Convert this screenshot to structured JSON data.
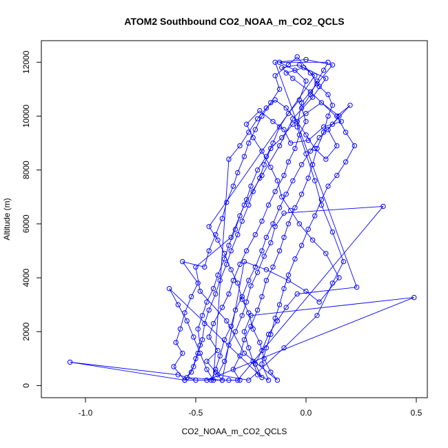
{
  "chart_data": {
    "type": "scatter",
    "title": "ATOM2 Southbound CO2_NOAA_m_CO2_QCLS",
    "xlabel": "CO2_NOAA_m_CO2_QCLS",
    "ylabel": "Altitude (m)",
    "xlim": [
      -1.2,
      0.55
    ],
    "ylim": [
      -450,
      12800
    ],
    "x_ticks": [
      -1.0,
      -0.5,
      0.0,
      0.5
    ],
    "x_tick_labels": [
      "-1.0",
      "-0.5",
      "0.0",
      "0.5"
    ],
    "y_ticks": [
      0,
      2000,
      4000,
      6000,
      8000,
      10000,
      12000
    ],
    "y_tick_labels": [
      "0",
      "2000",
      "4000",
      "6000",
      "8000",
      "10000",
      "12000"
    ],
    "grid": false,
    "legend": "none",
    "series": [
      {
        "color": "#0000ff",
        "marker": "open-circle",
        "connected": true,
        "points": [
          [
            -0.38,
            200
          ],
          [
            -0.41,
            500
          ],
          [
            -0.45,
            900
          ],
          [
            -0.4,
            1300
          ],
          [
            -0.44,
            1800
          ],
          [
            -0.42,
            2300
          ],
          [
            -0.38,
            2900
          ],
          [
            -0.35,
            3400
          ],
          [
            -0.33,
            3900
          ],
          [
            -0.3,
            4500
          ],
          [
            -0.27,
            5000
          ],
          [
            -0.23,
            5600
          ],
          [
            -0.2,
            6100
          ],
          [
            -0.17,
            6700
          ],
          [
            -0.14,
            7200
          ],
          [
            -0.1,
            7800
          ],
          [
            -0.08,
            8300
          ],
          [
            -0.05,
            8800
          ],
          [
            -0.03,
            9300
          ],
          [
            0.0,
            9800
          ],
          [
            -0.02,
            10300
          ],
          [
            0.02,
            10800
          ],
          [
            0.05,
            11300
          ],
          [
            0.08,
            11700
          ],
          [
            0.1,
            12000
          ],
          [
            -0.12,
            12000
          ],
          [
            -0.05,
            11700
          ],
          [
            0.0,
            11300
          ],
          [
            -0.03,
            10600
          ],
          [
            -0.08,
            10100
          ],
          [
            -0.12,
            9600
          ],
          [
            -0.15,
            9000
          ],
          [
            -0.18,
            8500
          ],
          [
            -0.22,
            8000
          ],
          [
            -0.25,
            7400
          ],
          [
            -0.27,
            6900
          ],
          [
            -0.3,
            6300
          ],
          [
            -0.32,
            5800
          ],
          [
            -0.35,
            5200
          ],
          [
            -0.37,
            4700
          ],
          [
            -0.4,
            4100
          ],
          [
            -0.42,
            3600
          ],
          [
            -0.45,
            3100
          ],
          [
            -0.47,
            2600
          ],
          [
            -0.49,
            2100
          ],
          [
            -0.48,
            1500
          ],
          [
            -0.5,
            1000
          ],
          [
            -0.52,
            500
          ],
          [
            -0.55,
            200
          ],
          [
            -1.07,
            870
          ],
          [
            -0.58,
            400
          ],
          [
            -0.5,
            200
          ],
          [
            -0.35,
            200
          ],
          [
            -0.3,
            200
          ],
          [
            -0.33,
            600
          ],
          [
            -0.3,
            1100
          ],
          [
            -0.28,
            1700
          ],
          [
            -0.25,
            2200
          ],
          [
            -0.22,
            2800
          ],
          [
            -0.2,
            3300
          ],
          [
            -0.18,
            3900
          ],
          [
            -0.15,
            4400
          ],
          [
            -0.12,
            5000
          ],
          [
            -0.1,
            5500
          ],
          [
            -0.08,
            6000
          ],
          [
            -0.05,
            6600
          ],
          [
            -0.02,
            7100
          ],
          [
            0.01,
            7700
          ],
          [
            0.03,
            8200
          ],
          [
            0.05,
            8800
          ],
          [
            0.08,
            9400
          ],
          [
            0.1,
            10000
          ],
          [
            0.12,
            10400
          ],
          [
            0.1,
            10800
          ],
          [
            0.06,
            11100
          ],
          [
            0.02,
            11600
          ],
          [
            -0.04,
            12200
          ],
          [
            -0.08,
            11900
          ],
          [
            -0.14,
            11500
          ],
          [
            -0.12,
            11000
          ],
          [
            -0.16,
            10500
          ],
          [
            -0.2,
            10000
          ],
          [
            -0.23,
            9500
          ],
          [
            -0.26,
            9000
          ],
          [
            -0.28,
            8500
          ],
          [
            -0.31,
            7900
          ],
          [
            -0.33,
            7400
          ],
          [
            -0.36,
            6800
          ],
          [
            -0.38,
            6200
          ],
          [
            -0.41,
            5600
          ],
          [
            -0.44,
            5000
          ],
          [
            -0.46,
            4400
          ],
          [
            -0.56,
            4600
          ],
          [
            -0.49,
            3800
          ],
          [
            -0.52,
            3300
          ],
          [
            -0.55,
            2700
          ],
          [
            -0.57,
            2100
          ],
          [
            -0.59,
            1600
          ],
          [
            -0.56,
            1200
          ],
          [
            -0.6,
            700
          ],
          [
            -0.55,
            200
          ],
          [
            -0.45,
            200
          ],
          [
            0.49,
            3270
          ],
          [
            -0.25,
            2600
          ],
          [
            -0.28,
            2000
          ],
          [
            -0.26,
            1400
          ],
          [
            -0.24,
            900
          ],
          [
            -0.22,
            400
          ],
          [
            -0.17,
            200
          ],
          [
            -0.2,
            800
          ],
          [
            -0.18,
            1400
          ],
          [
            -0.16,
            1900
          ],
          [
            -0.14,
            2500
          ],
          [
            -0.12,
            3000
          ],
          [
            -0.1,
            3600
          ],
          [
            -0.08,
            4100
          ],
          [
            -0.05,
            4700
          ],
          [
            -0.02,
            5200
          ],
          [
            0.01,
            5800
          ],
          [
            0.04,
            6300
          ],
          [
            0.07,
            6900
          ],
          [
            0.1,
            7400
          ],
          [
            0.14,
            7800
          ],
          [
            0.18,
            8300
          ],
          [
            0.22,
            8900
          ],
          [
            0.18,
            9400
          ],
          [
            0.14,
            10000
          ],
          [
            0.2,
            10400
          ],
          [
            0.12,
            9700
          ],
          [
            0.06,
            9200
          ],
          [
            0.02,
            8700
          ],
          [
            -0.02,
            8200
          ],
          [
            -0.06,
            7600
          ],
          [
            -0.09,
            7100
          ],
          [
            -0.12,
            6600
          ],
          [
            -0.15,
            6000
          ],
          [
            -0.18,
            5500
          ],
          [
            -0.2,
            5000
          ],
          [
            -0.23,
            4400
          ],
          [
            -0.26,
            3900
          ],
          [
            -0.29,
            3300
          ],
          [
            -0.32,
            2800
          ],
          [
            -0.34,
            2200
          ],
          [
            -0.37,
            1700
          ],
          [
            -0.39,
            1100
          ],
          [
            -0.41,
            600
          ],
          [
            -0.43,
            200
          ],
          [
            -0.31,
            200
          ],
          [
            0.35,
            6650
          ],
          [
            -0.1,
            6400
          ],
          [
            -0.14,
            5900
          ],
          [
            -0.16,
            5300
          ],
          [
            -0.19,
            4800
          ],
          [
            -0.22,
            4200
          ],
          [
            -0.25,
            3700
          ],
          [
            -0.27,
            3100
          ],
          [
            -0.29,
            2600
          ],
          [
            -0.32,
            2000
          ],
          [
            -0.35,
            1500
          ],
          [
            -0.37,
            900
          ],
          [
            -0.4,
            400
          ],
          [
            -0.26,
            200
          ],
          [
            -0.1,
            1400
          ],
          [
            0.05,
            2600
          ],
          [
            0.12,
            3800
          ],
          [
            0.17,
            4600
          ],
          [
            0.12,
            5700
          ],
          [
            0.07,
            6700
          ],
          [
            0.04,
            7600
          ],
          [
            0.0,
            8600
          ],
          [
            -0.04,
            9600
          ],
          [
            -0.02,
            10500
          ],
          [
            0.05,
            11200
          ],
          [
            0.12,
            11900
          ],
          [
            0.0,
            12100
          ],
          [
            -0.14,
            12000
          ],
          [
            0.23,
            3650
          ],
          [
            -0.04,
            3400
          ],
          [
            -0.09,
            2900
          ],
          [
            -0.13,
            2400
          ],
          [
            -0.17,
            1900
          ],
          [
            -0.2,
            1300
          ],
          [
            -0.23,
            800
          ],
          [
            -0.2,
            300
          ],
          [
            -0.62,
            3600
          ],
          [
            -0.58,
            3000
          ],
          [
            -0.54,
            2400
          ],
          [
            -0.51,
            1800
          ],
          [
            -0.48,
            1200
          ],
          [
            -0.45,
            600
          ],
          [
            -0.42,
            200
          ],
          [
            -0.35,
            8400
          ],
          [
            -0.3,
            8900
          ],
          [
            -0.26,
            9400
          ],
          [
            -0.22,
            9900
          ],
          [
            -0.18,
            10300
          ],
          [
            -0.14,
            10600
          ],
          [
            -0.09,
            10300
          ],
          [
            -0.04,
            9800
          ],
          [
            0.0,
            9300
          ],
          [
            0.04,
            8800
          ],
          [
            0.09,
            8400
          ],
          [
            0.14,
            8900
          ],
          [
            0.1,
            9500
          ],
          [
            0.15,
            10000
          ],
          [
            0.07,
            10500
          ],
          [
            0.0,
            10100
          ],
          [
            -0.06,
            9700
          ],
          [
            -0.11,
            9200
          ],
          [
            -0.16,
            8800
          ],
          [
            -0.19,
            8200
          ],
          [
            -0.21,
            7700
          ],
          [
            -0.24,
            7200
          ],
          [
            -0.26,
            6700
          ],
          [
            -0.29,
            6100
          ],
          [
            -0.31,
            5600
          ],
          [
            -0.34,
            5000
          ],
          [
            -0.36,
            4500
          ],
          [
            -0.39,
            3900
          ],
          [
            -0.41,
            3400
          ],
          [
            -0.44,
            2800
          ],
          [
            -0.46,
            2300
          ],
          [
            -0.47,
            1700
          ],
          [
            -0.49,
            1200
          ],
          [
            -0.51,
            700
          ],
          [
            -0.54,
            300
          ],
          [
            -0.38,
            200
          ],
          [
            -0.28,
            4600
          ],
          [
            -0.18,
            4300
          ],
          [
            -0.08,
            3900
          ],
          [
            0.0,
            3500
          ],
          [
            0.06,
            3100
          ],
          [
            0.15,
            4000
          ],
          [
            0.09,
            4900
          ],
          [
            0.03,
            5400
          ],
          [
            -0.03,
            6000
          ],
          [
            -0.07,
            6500
          ],
          [
            -0.11,
            7000
          ],
          [
            -0.13,
            7600
          ],
          [
            -0.16,
            8100
          ],
          [
            -0.2,
            8700
          ],
          [
            -0.24,
            9200
          ],
          [
            -0.27,
            9700
          ],
          [
            -0.21,
            10200
          ],
          [
            -0.15,
            9800
          ],
          [
            -0.1,
            9500
          ],
          [
            -0.07,
            9000
          ],
          [
            0.01,
            9100
          ],
          [
            0.08,
            9600
          ],
          [
            0.16,
            9800
          ],
          [
            0.02,
            10900
          ],
          [
            -0.06,
            11400
          ],
          [
            -0.11,
            11800
          ],
          [
            -0.03,
            11900
          ],
          [
            0.04,
            11500
          ],
          [
            -0.44,
            5900
          ],
          [
            -0.4,
            5400
          ],
          [
            -0.37,
            4900
          ],
          [
            -0.34,
            4300
          ],
          [
            -0.31,
            3800
          ],
          [
            -0.29,
            3200
          ],
          [
            -0.26,
            2700
          ],
          [
            -0.24,
            2100
          ],
          [
            -0.21,
            1600
          ],
          [
            -0.19,
            1000
          ],
          [
            -0.16,
            500
          ],
          [
            -0.13,
            200
          ],
          [
            -0.28,
            1200
          ],
          [
            -0.36,
            2400
          ],
          [
            -0.48,
            3500
          ],
          [
            -0.5,
            4400
          ],
          [
            -0.34,
            5500
          ],
          [
            -0.28,
            6700
          ],
          [
            -0.2,
            7800
          ],
          [
            -0.12,
            8900
          ],
          [
            -0.06,
            9900
          ],
          [
            0.03,
            10700
          ],
          [
            0.09,
            11400
          ],
          [
            -0.01,
            11800
          ],
          [
            -0.09,
            11600
          ]
        ]
      }
    ]
  }
}
